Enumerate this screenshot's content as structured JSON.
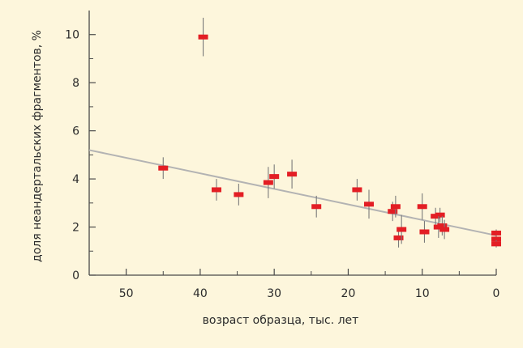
{
  "chart_data": {
    "type": "scatter",
    "title": "",
    "xlabel": "возраст образца, тыс. лет",
    "ylabel": "доля неандертальских фрагментов, %",
    "xlim": [
      55,
      0
    ],
    "ylim": [
      0,
      11
    ],
    "x_ticks": [
      50,
      40,
      30,
      20,
      10,
      0
    ],
    "x_minor_ticks": [
      45,
      35,
      25,
      15,
      5
    ],
    "y_ticks": [
      0,
      2,
      4,
      6,
      8,
      10
    ],
    "grid": false,
    "colors": {
      "background": "#fdf6dc",
      "point": "#e31e24",
      "error_bar": "#7a7a7a",
      "trend": "#b3b3b3",
      "axis": "#4a4a4a"
    },
    "trend_line": {
      "x": [
        55,
        0
      ],
      "y": [
        5.2,
        1.65
      ]
    },
    "points": [
      {
        "x": 45.0,
        "y": 4.45,
        "err": 0.45
      },
      {
        "x": 39.6,
        "y": 9.9,
        "err": 0.8
      },
      {
        "x": 37.8,
        "y": 3.55,
        "err": 0.45
      },
      {
        "x": 34.8,
        "y": 3.35,
        "err": 0.45
      },
      {
        "x": 30.8,
        "y": 3.85,
        "err": 0.65
      },
      {
        "x": 30.0,
        "y": 4.1,
        "err": 0.5
      },
      {
        "x": 27.6,
        "y": 4.2,
        "err": 0.6
      },
      {
        "x": 24.3,
        "y": 2.85,
        "err": 0.45
      },
      {
        "x": 18.8,
        "y": 3.55,
        "err": 0.45
      },
      {
        "x": 17.2,
        "y": 2.95,
        "err": 0.6
      },
      {
        "x": 14.0,
        "y": 2.65,
        "err": 0.4
      },
      {
        "x": 13.6,
        "y": 2.85,
        "err": 0.45
      },
      {
        "x": 13.2,
        "y": 1.55,
        "err": 0.4
      },
      {
        "x": 12.8,
        "y": 1.9,
        "err": 0.6
      },
      {
        "x": 10.0,
        "y": 2.85,
        "err": 0.55
      },
      {
        "x": 9.7,
        "y": 1.8,
        "err": 0.45
      },
      {
        "x": 8.2,
        "y": 2.45,
        "err": 0.35
      },
      {
        "x": 7.6,
        "y": 2.5,
        "err": 0.3
      },
      {
        "x": 7.8,
        "y": 2.0,
        "err": 0.45
      },
      {
        "x": 7.3,
        "y": 2.05,
        "err": 0.4
      },
      {
        "x": 7.0,
        "y": 1.9,
        "err": 0.4
      },
      {
        "x": 0.0,
        "y": 1.75,
        "err": 0.15
      },
      {
        "x": 0.0,
        "y": 1.5,
        "err": 0.15
      },
      {
        "x": 0.0,
        "y": 1.3,
        "err": 0.15
      }
    ]
  }
}
